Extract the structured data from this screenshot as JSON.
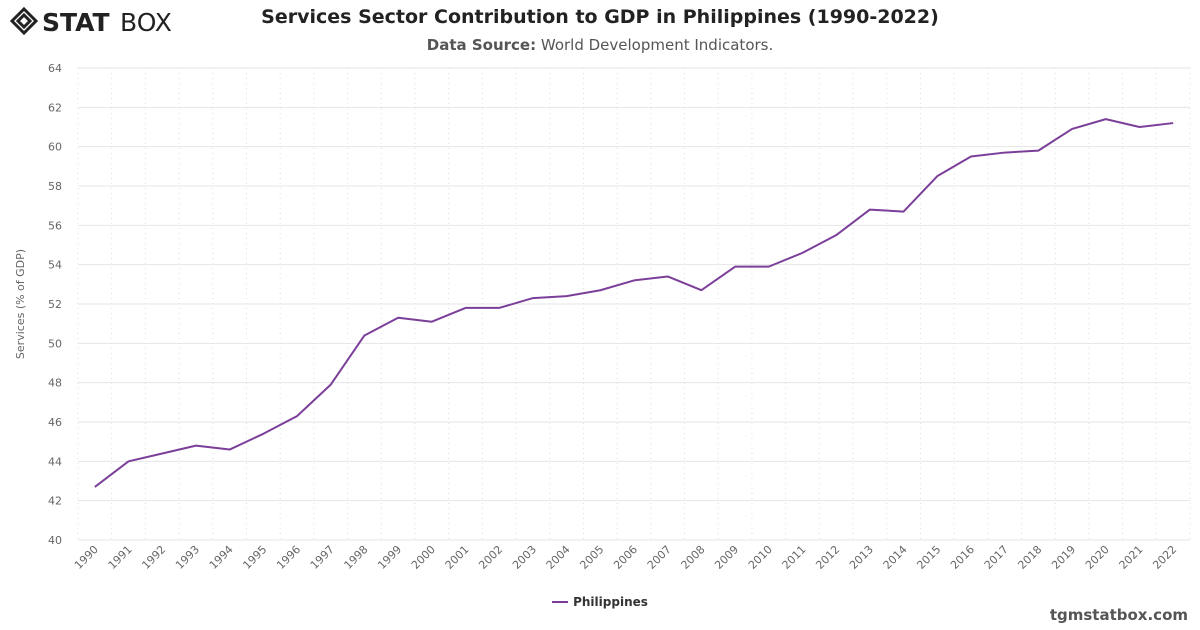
{
  "brand": {
    "logo_text": "STATBOX",
    "credit": "tgmstatbox.com"
  },
  "header": {
    "title": "Services Sector Contribution to GDP in Philippines (1990-2022)",
    "source_label": "Data Source:",
    "source_value": "World Development Indicators."
  },
  "chart_data": {
    "type": "line",
    "title": "Services Sector Contribution to GDP in Philippines (1990-2022)",
    "xlabel": "",
    "ylabel": "Services (% of GDP)",
    "ylim": [
      40,
      64
    ],
    "yticks": [
      40,
      42,
      44,
      46,
      48,
      50,
      52,
      54,
      56,
      58,
      60,
      62,
      64
    ],
    "grid": true,
    "legend": "bottom-center",
    "categories": [
      "1990",
      "1991",
      "1992",
      "1993",
      "1994",
      "1995",
      "1996",
      "1997",
      "1998",
      "1999",
      "2000",
      "2001",
      "2002",
      "2003",
      "2004",
      "2005",
      "2006",
      "2007",
      "2008",
      "2009",
      "2010",
      "2011",
      "2012",
      "2013",
      "2014",
      "2015",
      "2016",
      "2017",
      "2018",
      "2019",
      "2020",
      "2021",
      "2022"
    ],
    "series": [
      {
        "name": "Philippines",
        "color": "#7b3f9a",
        "values": [
          42.7,
          44.0,
          44.4,
          44.8,
          44.6,
          45.4,
          46.3,
          47.9,
          50.4,
          51.3,
          51.1,
          51.8,
          51.8,
          52.3,
          52.4,
          52.7,
          53.2,
          53.4,
          52.7,
          53.9,
          53.9,
          54.6,
          55.5,
          56.8,
          56.7,
          58.5,
          59.5,
          59.7,
          59.8,
          60.9,
          61.4,
          61.0,
          61.2
        ]
      }
    ]
  }
}
